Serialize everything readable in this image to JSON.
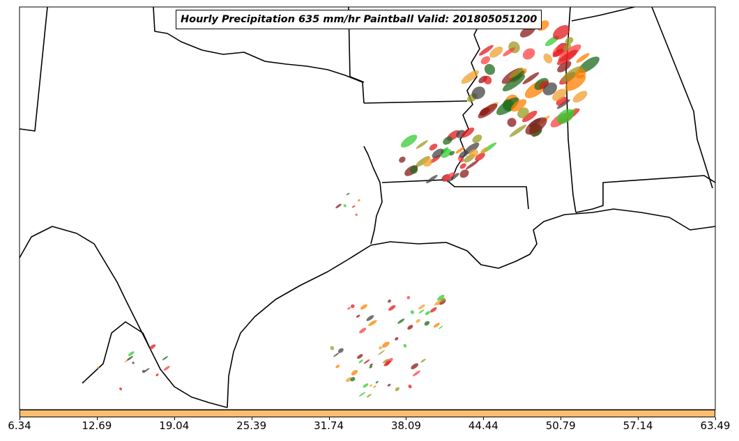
{
  "title": "Hourly Precipitation 635 mm/hr Paintball Valid: 201805051200",
  "colorbar": {
    "color": "#fdbf6f",
    "ticks": [
      "6.34",
      "12.69",
      "19.04",
      "25.39",
      "31.74",
      "38.09",
      "44.44",
      "50.79",
      "57.14",
      "63.49"
    ]
  },
  "colors": {
    "ocean": "#ffffff",
    "land": "#ffffff",
    "borders": "#000000",
    "members": [
      "#e31a1c",
      "#ff7f00",
      "#33cc33",
      "#8b1a1a",
      "#9a9a20",
      "#1f6b1f",
      "#444444",
      "#ff4040",
      "#f0a030"
    ]
  }
}
